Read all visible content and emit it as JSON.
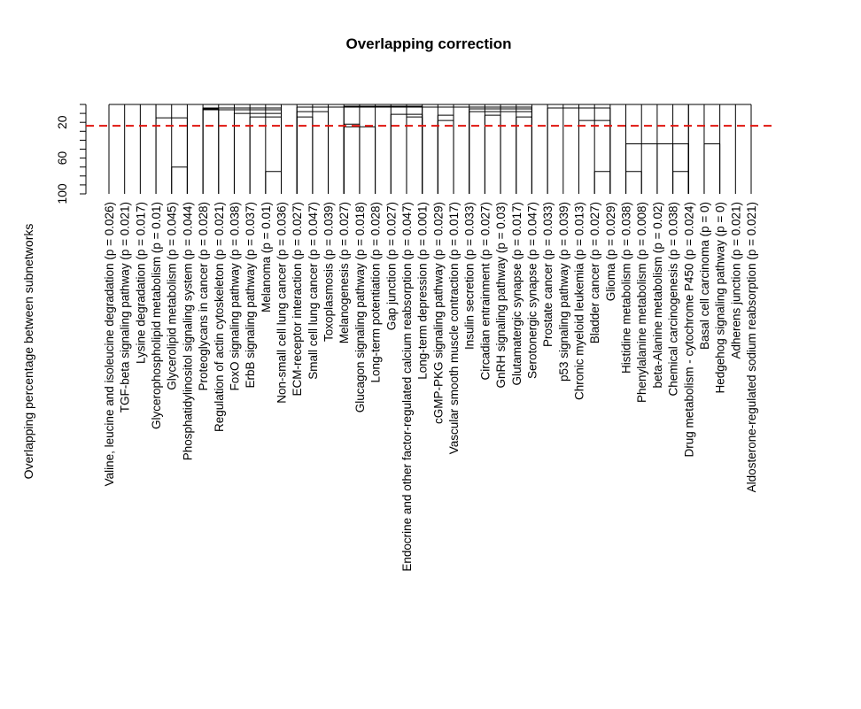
{
  "chart_data": {
    "type": "dendrogram",
    "title": "Overlapping correction",
    "ylabel": "Overlapping percentage between subnetworks",
    "y_axis": {
      "ticks": [
        20,
        60,
        100
      ],
      "range": [
        0,
        100
      ],
      "reversed": true
    },
    "cutoff_line": {
      "value": 10,
      "color": "#e0140e",
      "style": "dashed"
    },
    "line_color": "#000000",
    "leaves": [
      "Valine, leucine and isoleucine degradation (p = 0.026)",
      "TGF-beta signaling pathway (p = 0.021)",
      "Lysine degradation (p = 0.017)",
      "Glycerophospholipid metabolism (p = 0.01)",
      "Glycerolipid metabolism (p = 0.045)",
      "Phosphatidylinositol signaling system (p = 0.044)",
      "Proteoglycans in cancer (p = 0.028)",
      "Regulation of actin cytoskeleton (p = 0.021)",
      "FoxO signaling pathway (p = 0.038)",
      "ErbB signaling pathway (p = 0.037)",
      "Melanoma (p = 0.01)",
      "Non-small cell lung cancer (p = 0.036)",
      "ECM-receptor interaction (p = 0.027)",
      "Small cell lung cancer (p = 0.047)",
      "Toxoplasmosis (p = 0.039)",
      "Melanogenesis (p = 0.027)",
      "Glucagon signaling pathway (p = 0.018)",
      "Long-term potentiation (p = 0.028)",
      "Gap junction (p = 0.027)",
      "Endocrine and other factor-regulated calcium reabsorption (p = 0.047)",
      "Long-term depression (p = 0.001)",
      "cGMP-PKG signaling pathway (p = 0.029)",
      "Vascular smooth muscle contraction (p = 0.017)",
      "Insulin secretion (p = 0.033)",
      "Circadian entrainment (p = 0.027)",
      "GnRH signaling pathway (p = 0.03)",
      "Glutamatergic synapse (p = 0.017)",
      "Serotonergic synapse (p = 0.047)",
      "Prostate cancer (p = 0.033)",
      "p53 signaling pathway (p = 0.039)",
      "Chronic myeloid leukemia (p = 0.013)",
      "Bladder cancer (p = 0.027)",
      "Glioma (p = 0.029)",
      "Histidine metabolism (p = 0.038)",
      "Phenylalanine metabolism (p = 0.008)",
      "beta-Alanine metabolism (p = 0.02)",
      "Chemical carcinogenesis (p = 0.038)",
      "Drug metabolism - cytochrome P450 (p = 0.024)",
      "Basal cell carcinoma (p = 0)",
      "Hedgehog signaling pathway (p = 0)",
      "Adherens junction (p = 0.021)",
      "Aldosterone-regulated sodium reabsorption (p = 0.021)"
    ],
    "merges": [
      [
        4,
        5,
        70
      ],
      [
        10,
        11,
        75
      ],
      [
        31,
        32,
        75
      ],
      [
        33,
        34,
        75
      ],
      [
        36,
        37,
        75
      ],
      [
        15,
        16,
        22
      ],
      [
        15,
        17,
        25
      ],
      [
        21,
        22,
        12
      ],
      [
        9,
        11,
        14
      ],
      [
        12,
        13,
        14
      ],
      [
        24,
        25,
        12
      ],
      [
        26,
        27,
        14
      ],
      [
        30,
        32,
        18
      ],
      [
        33,
        35,
        44
      ],
      [
        36,
        37,
        44
      ],
      [
        38,
        39,
        44
      ],
      [
        3,
        5,
        15
      ],
      [
        6,
        7,
        5
      ],
      [
        8,
        11,
        10
      ],
      [
        12,
        14,
        8
      ],
      [
        18,
        20,
        11
      ],
      [
        19,
        20,
        14
      ],
      [
        21,
        22,
        18
      ],
      [
        23,
        27,
        8
      ],
      [
        28,
        32,
        4
      ],
      [
        33,
        37,
        44
      ],
      [
        6,
        11,
        6
      ],
      [
        6,
        11,
        4
      ],
      [
        23,
        27,
        5
      ],
      [
        15,
        20,
        2
      ],
      [
        12,
        27,
        3
      ],
      [
        33,
        37,
        44
      ],
      [
        3,
        37,
        0
      ],
      [
        0,
        41,
        0
      ]
    ]
  }
}
